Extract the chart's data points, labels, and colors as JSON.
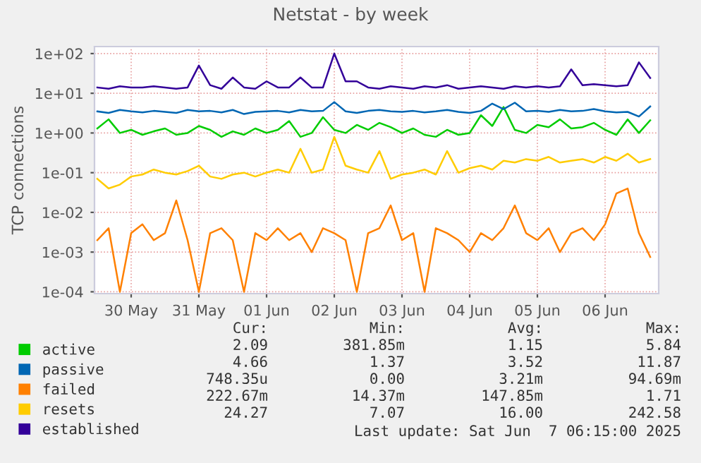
{
  "chart_data": {
    "type": "line",
    "title": "Netstat - by week",
    "ylabel": "TCP connections",
    "log": true,
    "grid": true,
    "legend": "bottom",
    "xlim": [
      "2025-05-29T23:00",
      "2025-06-07T07:00"
    ],
    "xticks": [
      {
        "value": "2025-05-30T12:00",
        "label": "30 May"
      },
      {
        "value": "2025-05-31T12:00",
        "label": "31 May"
      },
      {
        "value": "2025-06-01T12:00",
        "label": "01 Jun"
      },
      {
        "value": "2025-06-02T12:00",
        "label": "02 Jun"
      },
      {
        "value": "2025-06-03T12:00",
        "label": "03 Jun"
      },
      {
        "value": "2025-06-04T12:00",
        "label": "04 Jun"
      },
      {
        "value": "2025-06-05T12:00",
        "label": "05 Jun"
      },
      {
        "value": "2025-06-06T12:00",
        "label": "06 Jun"
      }
    ],
    "ylim": [
      9e-05,
      150
    ],
    "yticks": [
      {
        "value": 0.0001,
        "label": "1e-04"
      },
      {
        "value": 0.001,
        "label": "1e-03"
      },
      {
        "value": 0.01,
        "label": "1e-02"
      },
      {
        "value": 0.1,
        "label": "1e-01"
      },
      {
        "value": 1,
        "label": "1e+00"
      },
      {
        "value": 10,
        "label": "1e+01"
      },
      {
        "value": 100,
        "label": "1e+02"
      }
    ],
    "x": [
      "2025-05-30T00:00",
      "2025-05-30T04:00",
      "2025-05-30T08:00",
      "2025-05-30T12:00",
      "2025-05-30T16:00",
      "2025-05-30T20:00",
      "2025-05-31T00:00",
      "2025-05-31T04:00",
      "2025-05-31T08:00",
      "2025-05-31T12:00",
      "2025-05-31T16:00",
      "2025-05-31T20:00",
      "2025-06-01T00:00",
      "2025-06-01T04:00",
      "2025-06-01T08:00",
      "2025-06-01T12:00",
      "2025-06-01T16:00",
      "2025-06-01T20:00",
      "2025-06-02T00:00",
      "2025-06-02T04:00",
      "2025-06-02T08:00",
      "2025-06-02T12:00",
      "2025-06-02T16:00",
      "2025-06-02T20:00",
      "2025-06-03T00:00",
      "2025-06-03T04:00",
      "2025-06-03T08:00",
      "2025-06-03T12:00",
      "2025-06-03T16:00",
      "2025-06-03T20:00",
      "2025-06-04T00:00",
      "2025-06-04T04:00",
      "2025-06-04T08:00",
      "2025-06-04T12:00",
      "2025-06-04T16:00",
      "2025-06-04T20:00",
      "2025-06-05T00:00",
      "2025-06-05T04:00",
      "2025-06-05T08:00",
      "2025-06-05T12:00",
      "2025-06-05T16:00",
      "2025-06-05T20:00",
      "2025-06-06T00:00",
      "2025-06-06T04:00",
      "2025-06-06T08:00",
      "2025-06-06T12:00",
      "2025-06-06T16:00",
      "2025-06-06T20:00",
      "2025-06-07T00:00",
      "2025-06-07T04:00"
    ],
    "series": [
      {
        "name": "active",
        "color": "#00cc00",
        "values": [
          1.3,
          2.2,
          1.0,
          1.2,
          0.9,
          1.1,
          1.3,
          0.9,
          1.0,
          1.5,
          1.2,
          0.8,
          1.1,
          0.9,
          1.3,
          1.0,
          1.2,
          2.0,
          0.8,
          1.0,
          2.5,
          1.2,
          1.0,
          1.6,
          1.2,
          1.8,
          1.4,
          1.0,
          1.3,
          0.9,
          0.8,
          1.2,
          0.9,
          1.0,
          2.8,
          1.5,
          4.5,
          1.2,
          1.0,
          1.6,
          1.4,
          2.2,
          1.3,
          1.4,
          1.8,
          1.2,
          0.9,
          2.2,
          1.0,
          2.09
        ]
      },
      {
        "name": "passive",
        "color": "#0066b3",
        "values": [
          3.5,
          3.2,
          3.8,
          3.5,
          3.3,
          3.6,
          3.4,
          3.2,
          3.8,
          3.5,
          3.6,
          3.3,
          3.8,
          3.0,
          3.4,
          3.5,
          3.6,
          3.3,
          3.8,
          3.5,
          3.6,
          6.0,
          3.5,
          3.2,
          3.6,
          3.8,
          3.5,
          3.4,
          3.6,
          3.3,
          3.5,
          3.8,
          3.4,
          3.2,
          3.6,
          5.5,
          4.0,
          5.8,
          3.5,
          3.6,
          3.4,
          3.8,
          3.5,
          3.6,
          4.0,
          3.5,
          3.3,
          3.4,
          2.6,
          4.66
        ]
      },
      {
        "name": "failed",
        "color": "#ff8000",
        "values": [
          0.002,
          0.004,
          0.0001,
          0.003,
          0.005,
          0.002,
          0.003,
          0.02,
          0.002,
          0.0001,
          0.003,
          0.004,
          0.002,
          0.0001,
          0.003,
          0.002,
          0.004,
          0.002,
          0.003,
          0.001,
          0.004,
          0.003,
          0.002,
          0.0001,
          0.003,
          0.004,
          0.015,
          0.002,
          0.003,
          0.0001,
          0.004,
          0.003,
          0.002,
          0.001,
          0.003,
          0.002,
          0.004,
          0.015,
          0.003,
          0.002,
          0.004,
          0.001,
          0.003,
          0.004,
          0.002,
          0.005,
          0.03,
          0.04,
          0.003,
          0.00075
        ]
      },
      {
        "name": "resets",
        "color": "#ffcc00",
        "values": [
          0.07,
          0.04,
          0.05,
          0.08,
          0.09,
          0.12,
          0.1,
          0.09,
          0.11,
          0.15,
          0.08,
          0.07,
          0.09,
          0.1,
          0.08,
          0.1,
          0.12,
          0.1,
          0.4,
          0.1,
          0.12,
          0.8,
          0.15,
          0.12,
          0.1,
          0.35,
          0.07,
          0.09,
          0.1,
          0.12,
          0.09,
          0.35,
          0.1,
          0.13,
          0.15,
          0.12,
          0.2,
          0.18,
          0.22,
          0.2,
          0.25,
          0.18,
          0.2,
          0.22,
          0.18,
          0.25,
          0.2,
          0.3,
          0.18,
          0.22
        ]
      },
      {
        "name": "established",
        "color": "#330099",
        "values": [
          14,
          13,
          15,
          14,
          14,
          15,
          14,
          13,
          14,
          50,
          16,
          13,
          25,
          14,
          13,
          20,
          14,
          14,
          25,
          14,
          14,
          100,
          20,
          20,
          14,
          13,
          15,
          14,
          13,
          15,
          14,
          16,
          13,
          14,
          15,
          14,
          13,
          15,
          14,
          15,
          14,
          15,
          40,
          16,
          17,
          16,
          15,
          16,
          60,
          24.27
        ]
      }
    ],
    "annotations": [
      "Cur:",
      "Min:",
      "Avg:",
      "Max:",
      "2.09",
      "381.85m",
      "1.15",
      "5.84",
      "4.66",
      "1.37",
      "3.52",
      "11.87",
      "748.35u",
      "0.00",
      "3.21m",
      "94.69m",
      "222.67m",
      "14.37m",
      "147.85m",
      "1.71",
      "24.27",
      "7.07",
      "16.00",
      "242.58",
      "Last update: Sat Jun  7 06:15:00 2025"
    ]
  }
}
